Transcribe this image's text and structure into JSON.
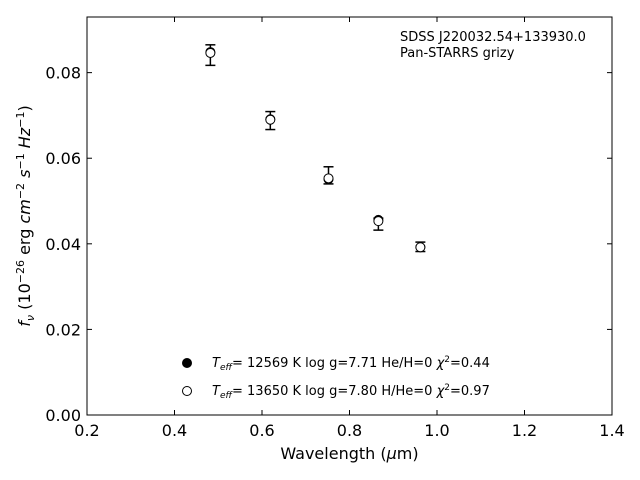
{
  "chart_data": {
    "type": "scatter",
    "annotation": [
      "SDSS J220032.54+133930.0",
      "Pan-STARRS grizy"
    ],
    "xlabel": "Wavelength (μm)",
    "ylabel": "f_ν (10^−26 erg cm^−2 s^−1 Hz^−1)",
    "xlim": [
      0.2,
      1.4
    ],
    "ylim": [
      0.0,
      0.093
    ],
    "xticks": [
      "0.2",
      "0.4",
      "0.6",
      "0.8",
      "1.0",
      "1.2",
      "1.4"
    ],
    "yticks": [
      "0.00",
      "0.02",
      "0.04",
      "0.06",
      "0.08"
    ],
    "grid": false,
    "legend_position": "lower-center",
    "observed": {
      "x": [
        0.482,
        0.619,
        0.752,
        0.866,
        0.962
      ],
      "y": [
        0.0841,
        0.0688,
        0.056,
        0.0446,
        0.0393
      ],
      "yerr": [
        0.0024,
        0.0021,
        0.002,
        0.0014,
        0.0011
      ]
    },
    "series": [
      {
        "label": "T_eff= 12569 K  log g=7.71  He/H=0  χ²=0.44",
        "marker": "filled-circle",
        "x": [
          0.482,
          0.619,
          0.752,
          0.866,
          0.962
        ],
        "y": [
          0.0848,
          0.0691,
          0.0551,
          0.0456,
          0.0392
        ]
      },
      {
        "label": "T_eff= 13650 K  log g=7.80  H/He=0  χ²=0.97",
        "marker": "open-circle",
        "x": [
          0.482,
          0.619,
          0.752,
          0.866,
          0.962
        ],
        "y": [
          0.0846,
          0.069,
          0.0553,
          0.0453,
          0.0392
        ]
      }
    ]
  }
}
